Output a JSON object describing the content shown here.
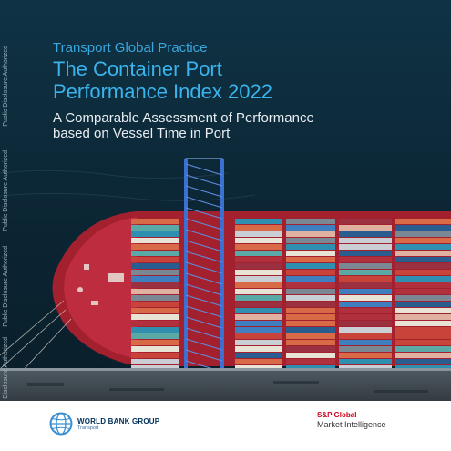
{
  "cover": {
    "practice": "Transport Global Practice",
    "title_line1": "The Container Port",
    "title_line2": "Performance Index 2022",
    "subtitle_line1": "A Comparable Assessment of Performance",
    "subtitle_line2": "based on Vessel Time in Port",
    "disclosure_label": "Public Disclosure Authorized"
  },
  "logos": {
    "world_bank_name": "WORLD BANK GROUP",
    "world_bank_sub": "Transport",
    "sp_name": "S&P Global",
    "sp_sub": "Market Intelligence"
  },
  "colors": {
    "sea": "#0d2a3a",
    "title_blue": "#39b4ee",
    "hull_red": "#b3233a",
    "crane_blue": "#3b6fd0",
    "wb_navy": "#00305c",
    "sp_red": "#d0021b"
  }
}
